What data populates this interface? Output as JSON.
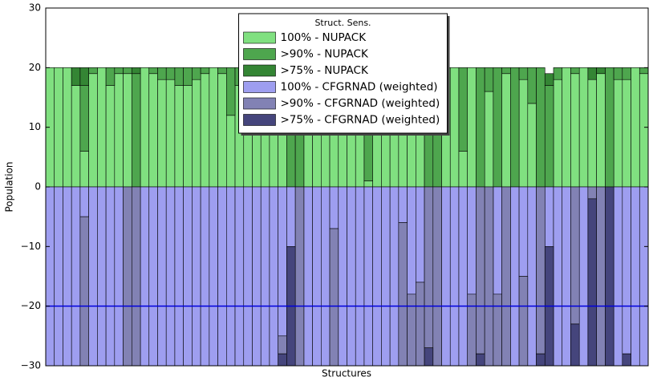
{
  "chart_data": {
    "type": "bar",
    "stacked": true,
    "xlabel": "Structures",
    "ylabel": "Population",
    "legend_title": "Struct. Sens.",
    "legend": "upper center",
    "categories": [
      null,
      null,
      null,
      null,
      null,
      null,
      null,
      null,
      null,
      null,
      null,
      null,
      null,
      null,
      null,
      null,
      null,
      null,
      null,
      null,
      null,
      null,
      null,
      null,
      null,
      null,
      null,
      null,
      null,
      null,
      null,
      null,
      null,
      null,
      null,
      null,
      null,
      null,
      null,
      null,
      null,
      null,
      null,
      null,
      null,
      null,
      null,
      null,
      null,
      null,
      null,
      null,
      null,
      null,
      null,
      null,
      null,
      null,
      null,
      null,
      null,
      null,
      null,
      null,
      null,
      null,
      null,
      null,
      null,
      null
    ],
    "ylim": [
      -30,
      30
    ],
    "yticks": [
      {
        "value": -30,
        "label": "−30"
      },
      {
        "value": -20,
        "label": "−20"
      },
      {
        "value": -10,
        "label": "−10"
      },
      0,
      10,
      20,
      30
    ],
    "hlines": [
      -20
    ],
    "hline_color": "#0000dd",
    "series": [
      {
        "name": "100% - NUPACK",
        "color": "#80e080",
        "values": [
          20,
          20,
          20,
          17,
          6,
          19,
          20,
          17,
          19,
          19,
          0,
          20,
          19,
          18,
          18,
          17,
          17,
          18,
          19,
          20,
          19,
          12,
          17,
          19,
          20,
          20,
          20,
          20,
          0,
          0,
          20,
          20,
          20,
          20,
          20,
          20,
          20,
          1,
          20,
          20,
          20,
          20,
          20,
          20,
          0,
          0,
          20,
          20,
          6,
          20,
          0,
          16,
          0,
          19,
          0,
          18,
          14,
          0,
          0,
          18,
          20,
          19,
          20,
          18,
          19,
          0,
          18,
          18,
          20,
          19
        ]
      },
      {
        "name": ">90% - NUPACK",
        "color": "#4ea64e",
        "values": [
          0,
          0,
          0,
          0,
          11,
          1,
          0,
          3,
          1,
          1,
          19,
          0,
          1,
          2,
          2,
          3,
          3,
          2,
          1,
          0,
          1,
          8,
          3,
          1,
          0,
          0,
          0,
          0,
          20,
          20,
          0,
          0,
          0,
          0,
          0,
          0,
          0,
          19,
          0,
          0,
          0,
          0,
          0,
          0,
          20,
          20,
          0,
          0,
          14,
          0,
          20,
          4,
          20,
          1,
          20,
          2,
          6,
          20,
          17,
          2,
          0,
          1,
          0,
          0,
          0,
          20,
          2,
          2,
          0,
          1
        ]
      },
      {
        "name": ">75% - NUPACK",
        "color": "#348534",
        "values": [
          0,
          0,
          0,
          3,
          3,
          0,
          0,
          0,
          0,
          0,
          1,
          0,
          0,
          0,
          0,
          0,
          0,
          0,
          0,
          0,
          0,
          0,
          0,
          0,
          0,
          0,
          0,
          0,
          0,
          0,
          0,
          0,
          0,
          0,
          0,
          0,
          0,
          0,
          0,
          0,
          0,
          0,
          0,
          0,
          0,
          0,
          0,
          0,
          0,
          0,
          0,
          0,
          0,
          0,
          0,
          0,
          0,
          0,
          2,
          0,
          0,
          0,
          0,
          2,
          1,
          0,
          0,
          0,
          0,
          0
        ]
      },
      {
        "name": "100% - CFGRNAD (weighted)",
        "color": "#9e9ef0",
        "values": [
          -30,
          -30,
          -30,
          -30,
          -5,
          -30,
          -30,
          -30,
          -30,
          0,
          0,
          -30,
          -30,
          -30,
          -30,
          -30,
          -30,
          -30,
          -30,
          -30,
          -30,
          -30,
          -30,
          -30,
          -30,
          -30,
          -30,
          -25,
          -10,
          0,
          -30,
          -30,
          -30,
          -7,
          -30,
          -30,
          -30,
          -30,
          -30,
          -30,
          -30,
          -6,
          -18,
          -16,
          0,
          0,
          -30,
          -30,
          -30,
          -18,
          0,
          0,
          -18,
          0,
          -30,
          -15,
          -30,
          0,
          -10,
          -30,
          -30,
          0,
          -30,
          0,
          0,
          0,
          -30,
          -28,
          -30,
          -30
        ]
      },
      {
        "name": ">90% - CFGRNAD (weighted)",
        "color": "#8282b4",
        "values": [
          0,
          0,
          0,
          0,
          -25,
          0,
          0,
          0,
          0,
          -30,
          -30,
          0,
          0,
          0,
          0,
          0,
          0,
          0,
          0,
          0,
          0,
          0,
          0,
          0,
          0,
          0,
          0,
          -3,
          0,
          -30,
          0,
          0,
          0,
          -23,
          0,
          0,
          0,
          0,
          0,
          0,
          0,
          -24,
          -12,
          -14,
          -27,
          -30,
          0,
          0,
          0,
          -12,
          -28,
          -30,
          -12,
          -30,
          0,
          -15,
          0,
          -28,
          0,
          0,
          0,
          -23,
          0,
          -2,
          -30,
          0,
          0,
          0,
          0,
          0
        ]
      },
      {
        "name": ">75% - CFGRNAD (weighted)",
        "color": "#45457c",
        "values": [
          0,
          0,
          0,
          0,
          0,
          0,
          0,
          0,
          0,
          0,
          0,
          0,
          0,
          0,
          0,
          0,
          0,
          0,
          0,
          0,
          0,
          0,
          0,
          0,
          0,
          0,
          0,
          -2,
          -20,
          0,
          0,
          0,
          0,
          0,
          0,
          0,
          0,
          0,
          0,
          0,
          0,
          0,
          0,
          0,
          -3,
          0,
          0,
          0,
          0,
          0,
          -2,
          0,
          0,
          0,
          0,
          0,
          0,
          -2,
          -20,
          0,
          0,
          -7,
          0,
          -28,
          0,
          -30,
          0,
          -2,
          0,
          0
        ]
      }
    ]
  }
}
